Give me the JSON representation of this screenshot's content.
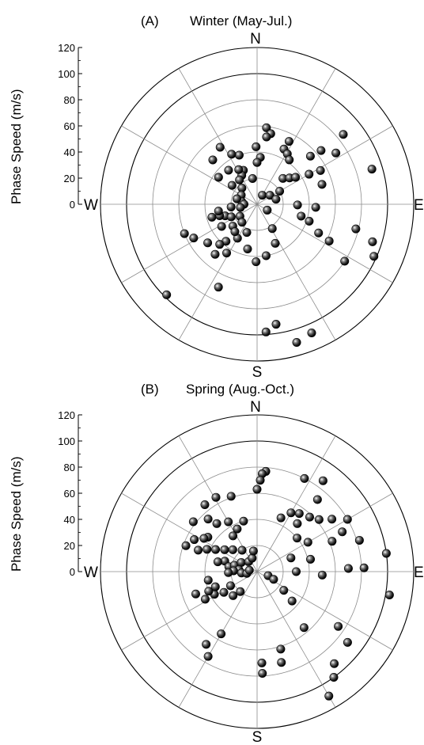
{
  "chart_data": [
    {
      "type": "scatter",
      "panel": "(A)",
      "title": "Winter (May-Jul.)",
      "ylabel": "Phase Speed (m/s)",
      "radial_range": [
        0,
        120
      ],
      "radial_ticks": [
        "0",
        "20",
        "40",
        "60",
        "80",
        "100",
        "120"
      ],
      "compass": {
        "n": "N",
        "e": "E",
        "s": "S",
        "w": "W"
      },
      "grid": true,
      "points": [
        {
          "speed": 59,
          "direction_deg": 7
        },
        {
          "speed": 55,
          "direction_deg": 11
        },
        {
          "speed": 52,
          "direction_deg": 8
        },
        {
          "speed": 54,
          "direction_deg": 27
        },
        {
          "speed": 47,
          "direction_deg": 26
        },
        {
          "speed": 45,
          "direction_deg": 31
        },
        {
          "speed": 42,
          "direction_deg": 36
        },
        {
          "speed": 40,
          "direction_deg": -20
        },
        {
          "speed": 43,
          "direction_deg": -27
        },
        {
          "speed": 44,
          "direction_deg": -1
        },
        {
          "speed": 36,
          "direction_deg": 4
        },
        {
          "speed": 32,
          "direction_deg": 0
        },
        {
          "speed": 28,
          "direction_deg": -22
        },
        {
          "speed": 25,
          "direction_deg": -28
        },
        {
          "speed": 30,
          "direction_deg": -28
        },
        {
          "speed": 23,
          "direction_deg": -36
        },
        {
          "speed": 20,
          "direction_deg": -10
        },
        {
          "speed": 17,
          "direction_deg": -43
        },
        {
          "speed": 14,
          "direction_deg": -60
        },
        {
          "speed": 12,
          "direction_deg": -80
        },
        {
          "speed": 16,
          "direction_deg": -75
        },
        {
          "speed": 10,
          "direction_deg": -90
        },
        {
          "speed": 8,
          "direction_deg": 30
        },
        {
          "speed": 12,
          "direction_deg": 55
        },
        {
          "speed": 15,
          "direction_deg": 75
        },
        {
          "speed": 9,
          "direction_deg": 120
        },
        {
          "speed": 20,
          "direction_deg": 60
        },
        {
          "speed": 28,
          "direction_deg": 45
        },
        {
          "speed": 32,
          "direction_deg": 51
        },
        {
          "speed": 36,
          "direction_deg": 55
        },
        {
          "speed": 46,
          "direction_deg": 60
        },
        {
          "speed": 55,
          "direction_deg": 48
        },
        {
          "speed": 64,
          "direction_deg": 50
        },
        {
          "speed": 55,
          "direction_deg": 62
        },
        {
          "speed": 52,
          "direction_deg": 73
        },
        {
          "speed": 72,
          "direction_deg": 57
        },
        {
          "speed": 85,
          "direction_deg": 51
        },
        {
          "speed": 92,
          "direction_deg": 73
        },
        {
          "speed": 31,
          "direction_deg": 91
        },
        {
          "speed": 45,
          "direction_deg": 93
        },
        {
          "speed": 35,
          "direction_deg": 105
        },
        {
          "speed": 42,
          "direction_deg": 108
        },
        {
          "speed": 52,
          "direction_deg": 115
        },
        {
          "speed": 62,
          "direction_deg": 117
        },
        {
          "speed": 78,
          "direction_deg": 104
        },
        {
          "speed": 93,
          "direction_deg": 108
        },
        {
          "speed": 80,
          "direction_deg": 123
        },
        {
          "speed": 98,
          "direction_deg": 114
        },
        {
          "speed": 22,
          "direction_deg": 148
        },
        {
          "speed": 33,
          "direction_deg": 155
        },
        {
          "speed": 40,
          "direction_deg": 170
        },
        {
          "speed": 93,
          "direction_deg": 171
        },
        {
          "speed": 98,
          "direction_deg": 176
        },
        {
          "speed": 107,
          "direction_deg": 157
        },
        {
          "speed": 110,
          "direction_deg": 164
        },
        {
          "speed": 23,
          "direction_deg": -160
        },
        {
          "speed": 35,
          "direction_deg": -168
        },
        {
          "speed": 44,
          "direction_deg": -179
        },
        {
          "speed": 30,
          "direction_deg": -150
        },
        {
          "speed": 37,
          "direction_deg": -140
        },
        {
          "speed": 42,
          "direction_deg": -137
        },
        {
          "speed": 48,
          "direction_deg": -128
        },
        {
          "speed": 55,
          "direction_deg": -118
        },
        {
          "speed": 60,
          "direction_deg": -112
        },
        {
          "speed": 32,
          "direction_deg": -122
        },
        {
          "speed": 26,
          "direction_deg": -110
        },
        {
          "speed": 20,
          "direction_deg": -96
        },
        {
          "speed": 30,
          "direction_deg": -107
        },
        {
          "speed": 36,
          "direction_deg": -106
        },
        {
          "speed": 30,
          "direction_deg": -100
        },
        {
          "speed": 16,
          "direction_deg": -125
        },
        {
          "speed": 25,
          "direction_deg": -132
        },
        {
          "speed": 18,
          "direction_deg": -140
        },
        {
          "speed": 22,
          "direction_deg": -116
        },
        {
          "speed": 70,
          "direction_deg": -155
        },
        {
          "speed": 98,
          "direction_deg": -135
        },
        {
          "speed": 44,
          "direction_deg": -148
        },
        {
          "speed": 50,
          "direction_deg": -140
        },
        {
          "speed": 27,
          "direction_deg": -141
        },
        {
          "speed": 13,
          "direction_deg": -101
        },
        {
          "speed": 48,
          "direction_deg": -45
        },
        {
          "speed": 36,
          "direction_deg": -55
        },
        {
          "speed": 24,
          "direction_deg": -53
        },
        {
          "speed": 52,
          "direction_deg": -33
        },
        {
          "speed": 34,
          "direction_deg": -40
        }
      ]
    },
    {
      "type": "scatter",
      "panel": "(B)",
      "title": "Spring (Aug.-Oct.)",
      "ylabel": "Phase Speed (m/s)",
      "radial_range": [
        0,
        120
      ],
      "radial_ticks": [
        "0",
        "20",
        "40",
        "60",
        "80",
        "100",
        "120"
      ],
      "compass": {
        "n": "N",
        "e": "E",
        "s": "S",
        "w": "W"
      },
      "grid": true,
      "points": [
        {
          "speed": 77,
          "direction_deg": 5
        },
        {
          "speed": 75,
          "direction_deg": 3
        },
        {
          "speed": 70,
          "direction_deg": 2
        },
        {
          "speed": 63,
          "direction_deg": 0
        },
        {
          "speed": 61,
          "direction_deg": -19
        },
        {
          "speed": 65,
          "direction_deg": -29
        },
        {
          "speed": 65,
          "direction_deg": -38
        },
        {
          "speed": 55,
          "direction_deg": -43
        },
        {
          "speed": 62,
          "direction_deg": -52
        },
        {
          "speed": 48,
          "direction_deg": -40
        },
        {
          "speed": 44,
          "direction_deg": -30
        },
        {
          "speed": 40,
          "direction_deg": -15
        },
        {
          "speed": 36,
          "direction_deg": -25
        },
        {
          "speed": 33,
          "direction_deg": -34
        },
        {
          "speed": 46,
          "direction_deg": -55
        },
        {
          "speed": 48,
          "direction_deg": -58
        },
        {
          "speed": 54,
          "direction_deg": -63
        },
        {
          "speed": 58,
          "direction_deg": -70
        },
        {
          "speed": 48,
          "direction_deg": -70
        },
        {
          "speed": 42,
          "direction_deg": -66
        },
        {
          "speed": 36,
          "direction_deg": -62
        },
        {
          "speed": 30,
          "direction_deg": -56
        },
        {
          "speed": 25,
          "direction_deg": -48
        },
        {
          "speed": 20,
          "direction_deg": -35
        },
        {
          "speed": 26,
          "direction_deg": -72
        },
        {
          "speed": 31,
          "direction_deg": -76
        },
        {
          "speed": 22,
          "direction_deg": -80
        },
        {
          "speed": 18,
          "direction_deg": -74
        },
        {
          "speed": 14,
          "direction_deg": -60
        },
        {
          "speed": 10,
          "direction_deg": -40
        },
        {
          "speed": 14,
          "direction_deg": -84
        },
        {
          "speed": 18,
          "direction_deg": -88
        },
        {
          "speed": 22,
          "direction_deg": -92
        },
        {
          "speed": 12,
          "direction_deg": -95
        },
        {
          "speed": 8,
          "direction_deg": -100
        },
        {
          "speed": 6,
          "direction_deg": -80
        },
        {
          "speed": 11,
          "direction_deg": -20
        },
        {
          "speed": 16,
          "direction_deg": -10
        },
        {
          "speed": 80,
          "direction_deg": 27
        },
        {
          "speed": 72,
          "direction_deg": 40
        },
        {
          "speed": 86,
          "direction_deg": 36
        },
        {
          "speed": 62,
          "direction_deg": 50
        },
        {
          "speed": 58,
          "direction_deg": 44
        },
        {
          "speed": 55,
          "direction_deg": 36
        },
        {
          "speed": 52,
          "direction_deg": 30
        },
        {
          "speed": 45,
          "direction_deg": 24
        },
        {
          "speed": 48,
          "direction_deg": 40
        },
        {
          "speed": 40,
          "direction_deg": 50
        },
        {
          "speed": 45,
          "direction_deg": 60
        },
        {
          "speed": 70,
          "direction_deg": 55
        },
        {
          "speed": 80,
          "direction_deg": 60
        },
        {
          "speed": 72,
          "direction_deg": 65
        },
        {
          "speed": 62,
          "direction_deg": 68
        },
        {
          "speed": 82,
          "direction_deg": 73
        },
        {
          "speed": 28,
          "direction_deg": 68
        },
        {
          "speed": 30,
          "direction_deg": 90
        },
        {
          "speed": 42,
          "direction_deg": 77
        },
        {
          "speed": 50,
          "direction_deg": 93
        },
        {
          "speed": 70,
          "direction_deg": 88
        },
        {
          "speed": 82,
          "direction_deg": 88
        },
        {
          "speed": 100,
          "direction_deg": 82
        },
        {
          "speed": 103,
          "direction_deg": 100
        },
        {
          "speed": 9,
          "direction_deg": 110
        },
        {
          "speed": 14,
          "direction_deg": 115
        },
        {
          "speed": 25,
          "direction_deg": 125
        },
        {
          "speed": 35,
          "direction_deg": 130
        },
        {
          "speed": 56,
          "direction_deg": 140
        },
        {
          "speed": 75,
          "direction_deg": 124
        },
        {
          "speed": 88,
          "direction_deg": 128
        },
        {
          "speed": 92,
          "direction_deg": 140
        },
        {
          "speed": 100,
          "direction_deg": 144
        },
        {
          "speed": 110,
          "direction_deg": 150
        },
        {
          "speed": 62,
          "direction_deg": 163
        },
        {
          "speed": 72,
          "direction_deg": 165
        },
        {
          "speed": 78,
          "direction_deg": 177
        },
        {
          "speed": 70,
          "direction_deg": 177
        },
        {
          "speed": 23,
          "direction_deg": -118
        },
        {
          "speed": 30,
          "direction_deg": -122
        },
        {
          "speed": 37,
          "direction_deg": -118
        },
        {
          "speed": 34,
          "direction_deg": -110
        },
        {
          "speed": 40,
          "direction_deg": -112
        },
        {
          "speed": 45,
          "direction_deg": -118
        },
        {
          "speed": 50,
          "direction_deg": -110
        },
        {
          "speed": 38,
          "direction_deg": -100
        },
        {
          "speed": 75,
          "direction_deg": -150
        },
        {
          "speed": 68,
          "direction_deg": -145
        },
        {
          "speed": 55,
          "direction_deg": -150
        },
        {
          "speed": 20,
          "direction_deg": -140
        },
        {
          "speed": 26,
          "direction_deg": -135
        }
      ]
    }
  ]
}
